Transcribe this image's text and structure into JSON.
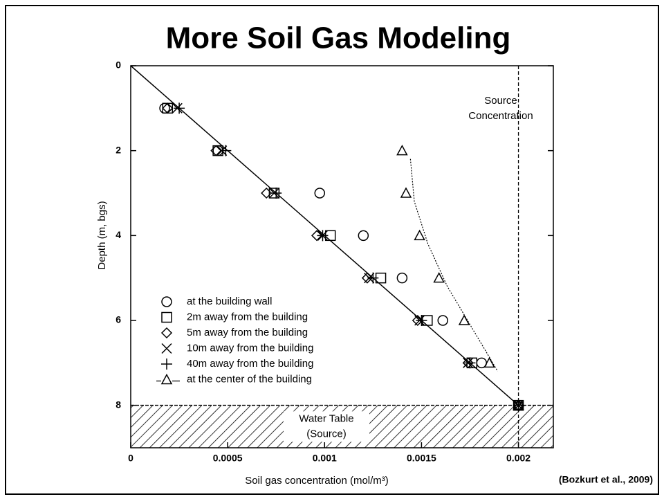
{
  "chart_data": {
    "type": "scatter",
    "title": "More Soil Gas Modeling",
    "x_label": "Soil gas concentration (mol/m³)",
    "y_label": "Depth (m, bgs)",
    "citation": "(Bozkurt et al., 2009)",
    "xlim": [
      0,
      0.00218
    ],
    "xticks": [
      0,
      0.0005,
      0.001,
      0.0015,
      0.002
    ],
    "ylim": [
      0,
      9
    ],
    "yticks": [
      0,
      2,
      4,
      6,
      8
    ],
    "y_inverted": true,
    "series": [
      {
        "name": "at the building wall",
        "marker": "circle",
        "color": "#000000",
        "x": [
          0.000175,
          0.00045,
          0.000975,
          0.0012,
          0.0014,
          0.00161,
          0.00181,
          0.002
        ],
        "y": [
          1,
          2,
          3,
          4,
          5,
          6,
          7,
          8
        ]
      },
      {
        "name": "2m away from the building",
        "marker": "square",
        "color": "#000000",
        "x": [
          0.00019,
          0.00045,
          0.00074,
          0.00103,
          0.00129,
          0.00153,
          0.00176,
          0.002
        ],
        "y": [
          1,
          2,
          3,
          4,
          5,
          6,
          7,
          8
        ]
      },
      {
        "name": "5m away from the building",
        "marker": "diamond",
        "color": "#000000",
        "x": [
          0.00019,
          0.00044,
          0.0007,
          0.00096,
          0.00122,
          0.00148,
          0.00174,
          0.002
        ],
        "y": [
          1,
          2,
          3,
          4,
          5,
          6,
          7,
          8
        ]
      },
      {
        "name": "10m away from the building",
        "marker": "x",
        "color": "#000000",
        "x": [
          0.00024,
          0.00047,
          0.00074,
          0.00099,
          0.00123,
          0.00149,
          0.00174,
          0.002
        ],
        "y": [
          1,
          2,
          3,
          4,
          5,
          6,
          7,
          8
        ]
      },
      {
        "name": "40m away from the building",
        "marker": "plus",
        "color": "#000000",
        "x": [
          0.00025,
          0.00049,
          0.00075,
          0.00099,
          0.00125,
          0.0015,
          0.00175,
          0.002
        ],
        "y": [
          1,
          2,
          3,
          4,
          5,
          6,
          7,
          8
        ]
      },
      {
        "name": "at the center of the building",
        "marker": "triangle",
        "color": "#000000",
        "line": "dashed",
        "x": [
          0.0014,
          0.00142,
          0.00149,
          0.00159,
          0.00172,
          0.00185,
          0.002
        ],
        "y": [
          2,
          3,
          4,
          5,
          6,
          7,
          8
        ]
      }
    ],
    "reference_line": {
      "x": [
        0,
        0.002
      ],
      "y": [
        0,
        8
      ]
    },
    "source_line": {
      "x": 0.002,
      "label": [
        "Source",
        "Concentration"
      ]
    },
    "water_table": {
      "y": [
        8,
        9
      ],
      "label": [
        "Water Table",
        "(Source)"
      ]
    }
  }
}
